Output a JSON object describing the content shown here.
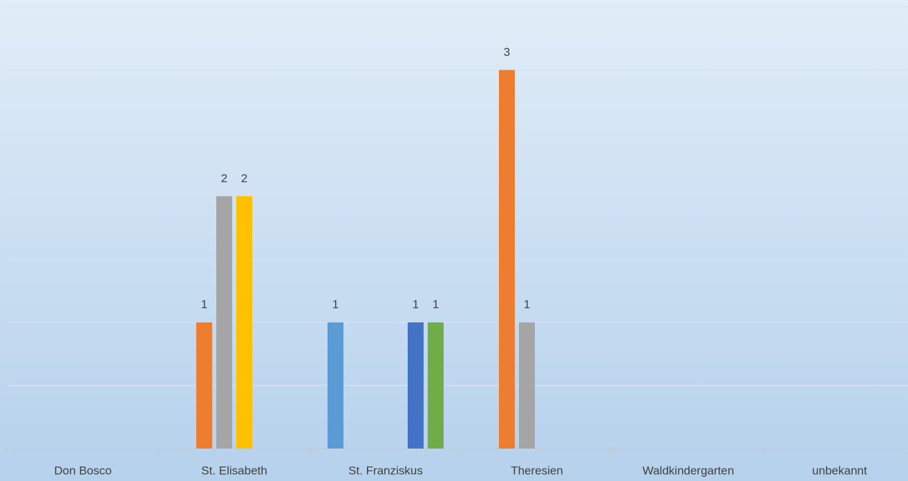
{
  "chart_data": {
    "type": "bar",
    "categories": [
      "Don Bosco",
      "St. Elisabeth",
      "St. Franziskus",
      "Theresien",
      "Waldkindergarten",
      "unbekannt"
    ],
    "series": [
      {
        "color": "#5b9bd5",
        "values": [
          null,
          null,
          1,
          null,
          null,
          null
        ]
      },
      {
        "color": "#ed7d31",
        "values": [
          null,
          1,
          null,
          3,
          null,
          null
        ]
      },
      {
        "color": "#a5a5a5",
        "values": [
          null,
          2,
          null,
          1,
          null,
          null
        ]
      },
      {
        "color": "#ffc000",
        "values": [
          null,
          2,
          null,
          null,
          null,
          null
        ]
      },
      {
        "color": "#4472c4",
        "values": [
          null,
          null,
          1,
          null,
          null,
          null
        ]
      },
      {
        "color": "#70ad47",
        "values": [
          null,
          null,
          1,
          null,
          null,
          null
        ]
      }
    ],
    "ylim": [
      0,
      3.5
    ],
    "yticks": [
      0,
      0.5,
      1,
      1.5,
      2,
      2.5,
      3,
      3.5
    ],
    "grid": true
  }
}
